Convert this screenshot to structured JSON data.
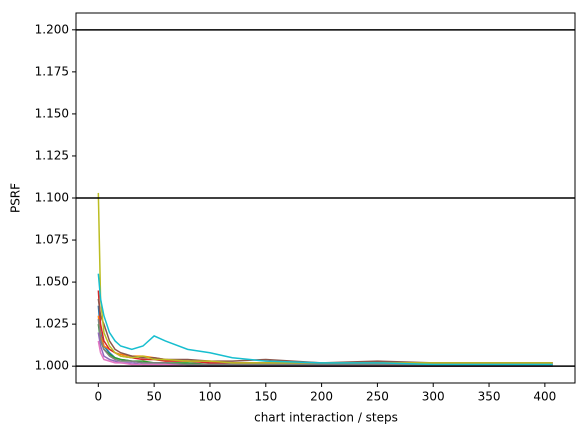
{
  "chart_data": {
    "type": "line",
    "xlabel": "chart interaction / steps",
    "ylabel": "PSRF",
    "x": [
      0,
      2,
      5,
      10,
      15,
      20,
      30,
      40,
      50,
      60,
      80,
      100,
      120,
      150,
      200,
      250,
      300,
      350,
      407
    ],
    "series": [
      {
        "color": "#1f77b4",
        "values": [
          1.036,
          1.02,
          1.012,
          1.008,
          1.005,
          1.004,
          1.003,
          1.002,
          1.002,
          1.002,
          1.001,
          1.001,
          1.001,
          1.001,
          1.001,
          1.001,
          1.001,
          1.001,
          1.001
        ]
      },
      {
        "color": "#ff7f0e",
        "values": [
          1.03,
          1.018,
          1.012,
          1.01,
          1.008,
          1.007,
          1.006,
          1.006,
          1.005,
          1.004,
          1.003,
          1.003,
          1.002,
          1.002,
          1.002,
          1.002,
          1.002,
          1.002,
          1.002
        ]
      },
      {
        "color": "#2ca02c",
        "values": [
          1.025,
          1.015,
          1.01,
          1.007,
          1.005,
          1.004,
          1.003,
          1.003,
          1.002,
          1.002,
          1.002,
          1.001,
          1.001,
          1.001,
          1.001,
          1.001,
          1.001,
          1.001,
          1.001
        ]
      },
      {
        "color": "#d62728",
        "values": [
          1.045,
          1.025,
          1.015,
          1.01,
          1.008,
          1.006,
          1.005,
          1.004,
          1.004,
          1.003,
          1.003,
          1.002,
          1.002,
          1.002,
          1.002,
          1.002,
          1.002,
          1.002,
          1.002
        ]
      },
      {
        "color": "#9467bd",
        "values": [
          1.02,
          1.012,
          1.006,
          1.004,
          1.003,
          1.002,
          1.002,
          1.001,
          1.001,
          1.001,
          1.001,
          1.001,
          1.001,
          1.001,
          1.001,
          1.001,
          1.001,
          1.001,
          1.001
        ]
      },
      {
        "color": "#8c564b",
        "values": [
          1.04,
          1.03,
          1.025,
          1.015,
          1.01,
          1.008,
          1.006,
          1.005,
          1.005,
          1.004,
          1.004,
          1.003,
          1.003,
          1.004,
          1.002,
          1.003,
          1.002,
          1.002,
          1.002
        ]
      },
      {
        "color": "#e377c2",
        "values": [
          1.015,
          1.008,
          1.004,
          1.003,
          1.002,
          1.002,
          1.001,
          1.001,
          1.001,
          1.001,
          1.0,
          1.0,
          1.0,
          1.0,
          1.0,
          1.0,
          1.0,
          1.0,
          1.0
        ]
      },
      {
        "color": "#7f7f7f",
        "values": [
          1.028,
          1.016,
          1.01,
          1.006,
          1.004,
          1.003,
          1.003,
          1.002,
          1.002,
          1.002,
          1.001,
          1.001,
          1.001,
          1.001,
          1.001,
          1.001,
          1.001,
          1.001,
          1.001
        ]
      },
      {
        "color": "#bcbd22",
        "values": [
          1.103,
          1.04,
          1.02,
          1.012,
          1.008,
          1.006,
          1.005,
          1.006,
          1.004,
          1.004,
          1.003,
          1.003,
          1.002,
          1.002,
          1.002,
          1.002,
          1.002,
          1.002,
          1.002
        ]
      },
      {
        "color": "#17becf",
        "values": [
          1.055,
          1.04,
          1.03,
          1.02,
          1.015,
          1.012,
          1.01,
          1.012,
          1.018,
          1.015,
          1.01,
          1.008,
          1.005,
          1.003,
          1.002,
          1.002,
          1.001,
          1.001,
          1.001
        ]
      }
    ],
    "hlines": [
      1.0,
      1.1,
      1.2
    ],
    "hline_color": "#000000",
    "xlim": [
      -20,
      427
    ],
    "ylim": [
      0.99,
      1.21
    ],
    "xticks": [
      0,
      50,
      100,
      150,
      200,
      250,
      300,
      350,
      400
    ],
    "yticks": [
      {
        "value": 1.0,
        "label": "1.000"
      },
      {
        "value": 1.025,
        "label": "1.025"
      },
      {
        "value": 1.05,
        "label": "1.050"
      },
      {
        "value": 1.075,
        "label": "1.075"
      },
      {
        "value": 1.1,
        "label": "1.100"
      },
      {
        "value": 1.125,
        "label": "1.125"
      },
      {
        "value": 1.15,
        "label": "1.150"
      },
      {
        "value": 1.175,
        "label": "1.175"
      },
      {
        "value": 1.2,
        "label": "1.200"
      }
    ]
  }
}
